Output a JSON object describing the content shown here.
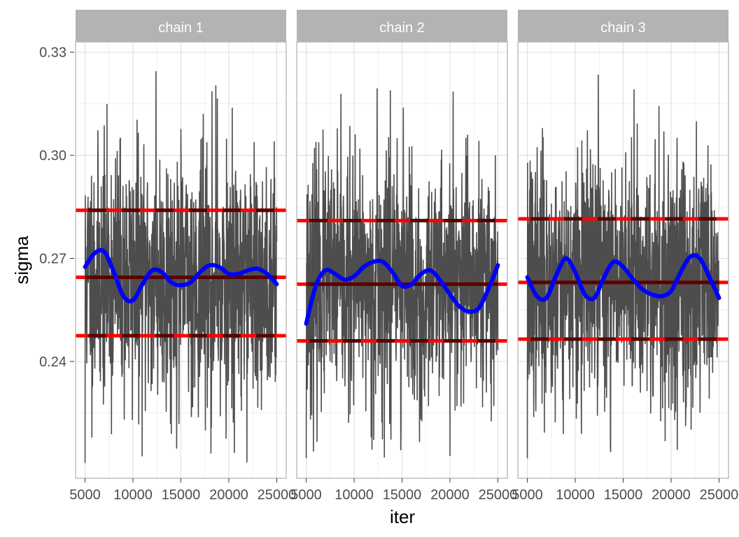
{
  "chart_data": {
    "type": "line",
    "xlabel": "iter",
    "ylabel": "sigma",
    "x_range": [
      5000,
      25000
    ],
    "ylim": [
      0.206,
      0.333
    ],
    "x_ticks": [
      5000,
      10000,
      15000,
      20000,
      25000
    ],
    "x_tick_labels": [
      "5000",
      "10000",
      "15000",
      "20000",
      "25000"
    ],
    "y_ticks": [
      0.24,
      0.27,
      0.3,
      0.33
    ],
    "y_tick_labels": [
      "0.24",
      "0.27",
      "0.30",
      "0.33"
    ],
    "grid": true,
    "colors": {
      "trace": "#4d4d4d",
      "smooth": "#0000ff",
      "mean_line": "#5a0000",
      "interval_line": "#ff0000",
      "strip": "#b3b3b3",
      "grid": "#ebebeb",
      "panel_border": "#b3b3b3"
    },
    "panels": [
      {
        "label": "chain 1",
        "mean": 0.2645,
        "interval": [
          0.2475,
          0.284
        ],
        "smooth": {
          "x": [
            5000,
            6000,
            7000,
            8000,
            9000,
            10000,
            11000,
            12000,
            13000,
            14000,
            15000,
            16000,
            17000,
            18000,
            19000,
            20000,
            21000,
            22000,
            23000,
            24000,
            25000
          ],
          "y": [
            0.2675,
            0.2715,
            0.272,
            0.266,
            0.259,
            0.2578,
            0.2625,
            0.2665,
            0.266,
            0.263,
            0.2622,
            0.263,
            0.266,
            0.268,
            0.2675,
            0.2655,
            0.2655,
            0.2665,
            0.267,
            0.2655,
            0.2625
          ]
        },
        "trace": {
          "center": 0.2645,
          "sd": 0.0185,
          "min": 0.2105,
          "max": 0.3245,
          "seed": 11
        }
      },
      {
        "label": "chain 2",
        "mean": 0.2625,
        "interval": [
          0.246,
          0.281
        ],
        "smooth": {
          "x": [
            5000,
            6000,
            7000,
            8000,
            9000,
            10000,
            11000,
            12000,
            13000,
            14000,
            15000,
            16000,
            17000,
            18000,
            19000,
            20000,
            21000,
            22000,
            23000,
            24000,
            25000
          ],
          "y": [
            0.251,
            0.262,
            0.2665,
            0.2655,
            0.2638,
            0.2648,
            0.2675,
            0.269,
            0.269,
            0.266,
            0.262,
            0.2625,
            0.2655,
            0.2665,
            0.2635,
            0.2595,
            0.256,
            0.2545,
            0.2555,
            0.261,
            0.268
          ]
        },
        "trace": {
          "center": 0.2625,
          "sd": 0.018,
          "min": 0.2118,
          "max": 0.3195,
          "seed": 23
        }
      },
      {
        "label": "chain 3",
        "mean": 0.263,
        "interval": [
          0.2465,
          0.2815
        ],
        "smooth": {
          "x": [
            5000,
            6000,
            7000,
            8000,
            9000,
            10000,
            11000,
            12000,
            13000,
            14000,
            15000,
            16000,
            17000,
            18000,
            19000,
            20000,
            21000,
            22000,
            23000,
            24000,
            25000
          ],
          "y": [
            0.2645,
            0.259,
            0.2585,
            0.265,
            0.27,
            0.266,
            0.2595,
            0.2585,
            0.2645,
            0.269,
            0.2675,
            0.264,
            0.261,
            0.2595,
            0.259,
            0.2605,
            0.266,
            0.2705,
            0.27,
            0.2645,
            0.2585
          ]
        },
        "trace": {
          "center": 0.263,
          "sd": 0.0185,
          "min": 0.2118,
          "max": 0.3235,
          "seed": 37
        }
      }
    ]
  }
}
